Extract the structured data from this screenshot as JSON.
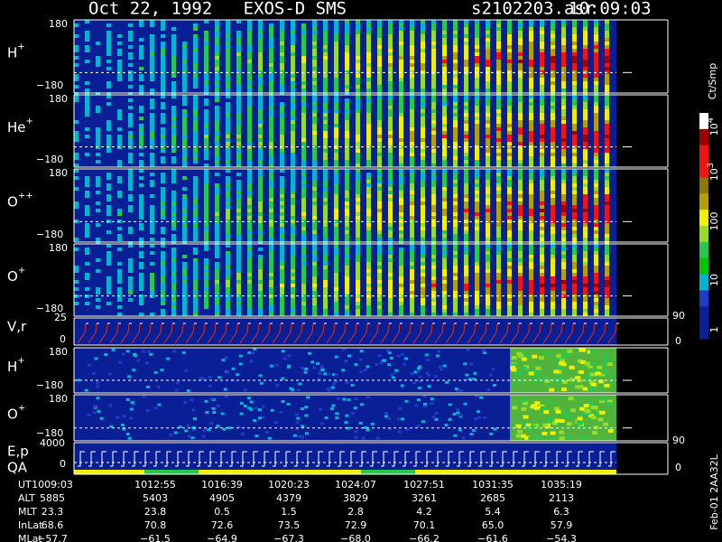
{
  "header": {
    "title": "Oct 22, 1992   EXOS-D SMS",
    "file": "s2102203.asr",
    "time": "10:09:03"
  },
  "panels": [
    {
      "ion": "H",
      "charge": "+",
      "ymax": "180",
      "ymin": "−180"
    },
    {
      "ion": "He",
      "charge": "+",
      "ymax": "180",
      "ymin": "−180"
    },
    {
      "ion": "O",
      "charge": "++",
      "ymax": "180",
      "ymin": "−180"
    },
    {
      "ion": "O",
      "charge": "+",
      "ymax": "180",
      "ymin": "−180"
    },
    {
      "ion": "H",
      "charge": "+",
      "ymax": "180",
      "ymin": "−180"
    },
    {
      "ion": "O",
      "charge": "+",
      "ymax": "180",
      "ymin": "−180"
    }
  ],
  "vr_panel": {
    "label": "V,r",
    "ymax": "25",
    "ymin": "0",
    "right_top": "90",
    "right_bottom": "0"
  },
  "ep_panel": {
    "label_1": "E,p",
    "label_2": "QA",
    "ymax": "4000",
    "ymin": "0",
    "right_top": "90",
    "right_bottom": "0"
  },
  "colorbar": {
    "unit": "Ct/Smp",
    "labels": [
      {
        "base": "10",
        "exp": "4"
      },
      {
        "base": "10",
        "exp": "3"
      },
      "100",
      "10",
      "1"
    ]
  },
  "footer": {
    "rows": [
      [
        "UT",
        "1009:03",
        "1012:55",
        "1016:39",
        "1020:23",
        "1024:07",
        "1027:51",
        "1031:35",
        "1035:19"
      ],
      [
        "ALT",
        "5885",
        "5403",
        "4905",
        "4379",
        "3829",
        "3261",
        "2685",
        "2113"
      ],
      [
        "MLT",
        "23.3",
        "23.8",
        "0.5",
        "1.5",
        "2.8",
        "4.2",
        "5.4",
        "6.3"
      ],
      [
        "InLat",
        "68.6",
        "70.8",
        "72.6",
        "73.5",
        "72.9",
        "70.1",
        "65.0",
        "57.9"
      ],
      [
        "MLat",
        "−57.7",
        "−61.5",
        "−64.9",
        "−67.3",
        "−68.0",
        "−66.2",
        "−61.6",
        "−54.3"
      ]
    ]
  },
  "stamp": "Feb-01 2AA32L"
}
